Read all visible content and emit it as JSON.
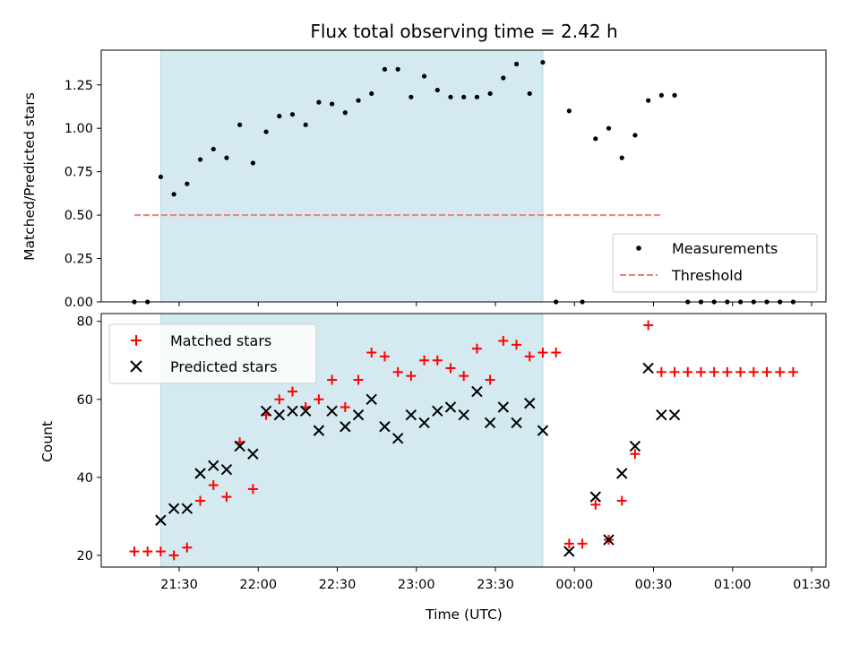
{
  "chart_data": [
    {
      "type": "scatter",
      "title": "Flux total observing time = 2.42 h",
      "ylabel": "Matched/Predicted stars",
      "ylim": [
        0,
        1.45
      ],
      "yticks": [
        "0.00",
        "0.25",
        "0.50",
        "0.75",
        "1.00",
        "1.25"
      ],
      "ytick_values": [
        0,
        0.25,
        0.5,
        0.75,
        1.0,
        1.25
      ],
      "observing_window": {
        "start": "21:23",
        "end": "23:48",
        "color": "#d4eaf0"
      },
      "threshold": {
        "value": 0.5,
        "x_start": "21:13",
        "x_end": "00:33+1",
        "color": "#f08080"
      },
      "legend": {
        "position": "lower right",
        "items": [
          {
            "label": "Measurements",
            "marker": "dot",
            "color": "#000000"
          },
          {
            "label": "Threshold",
            "marker": "dashed-line",
            "color": "#f08080"
          }
        ]
      },
      "series": [
        {
          "name": "Measurements",
          "color": "#000000",
          "points": [
            [
              "21:13",
              0.0
            ],
            [
              "21:18",
              0.0
            ],
            [
              "21:23",
              0.72
            ],
            [
              "21:28",
              0.62
            ],
            [
              "21:33",
              0.68
            ],
            [
              "21:38",
              0.82
            ],
            [
              "21:43",
              0.88
            ],
            [
              "21:48",
              0.83
            ],
            [
              "21:53",
              1.02
            ],
            [
              "21:58",
              0.8
            ],
            [
              "22:03",
              0.98
            ],
            [
              "22:08",
              1.07
            ],
            [
              "22:13",
              1.08
            ],
            [
              "22:18",
              1.02
            ],
            [
              "22:23",
              1.15
            ],
            [
              "22:28",
              1.14
            ],
            [
              "22:33",
              1.09
            ],
            [
              "22:38",
              1.16
            ],
            [
              "22:43",
              1.2
            ],
            [
              "22:48",
              1.34
            ],
            [
              "22:53",
              1.34
            ],
            [
              "22:58",
              1.18
            ],
            [
              "23:03",
              1.3
            ],
            [
              "23:08",
              1.22
            ],
            [
              "23:13",
              1.18
            ],
            [
              "23:18",
              1.18
            ],
            [
              "23:23",
              1.18
            ],
            [
              "23:28",
              1.2
            ],
            [
              "23:33",
              1.29
            ],
            [
              "23:38",
              1.37
            ],
            [
              "23:43",
              1.2
            ],
            [
              "23:48",
              1.38
            ],
            [
              "23:53",
              0.0
            ],
            [
              "23:58",
              1.1
            ],
            [
              "00:03",
              0.0
            ],
            [
              "00:08",
              0.94
            ],
            [
              "00:13",
              1.0
            ],
            [
              "00:18",
              0.83
            ],
            [
              "00:23",
              0.96
            ],
            [
              "00:28",
              1.16
            ],
            [
              "00:33",
              1.19
            ],
            [
              "00:38",
              1.19
            ],
            [
              "00:43",
              0.0
            ],
            [
              "00:48",
              0.0
            ],
            [
              "00:53",
              0.0
            ],
            [
              "00:58",
              0.0
            ],
            [
              "01:03",
              0.0
            ],
            [
              "01:08",
              0.0
            ],
            [
              "01:13",
              0.0
            ],
            [
              "01:18",
              0.0
            ],
            [
              "01:23",
              0.0
            ]
          ]
        }
      ]
    },
    {
      "type": "scatter",
      "xlabel": "Time (UTC)",
      "ylabel": "Count",
      "ylim": [
        17,
        82
      ],
      "yticks": [
        "20",
        "40",
        "60",
        "80"
      ],
      "ytick_values": [
        20,
        40,
        60,
        80
      ],
      "xticks": [
        "21:30",
        "22:00",
        "22:30",
        "23:00",
        "23:30",
        "00:00",
        "00:30",
        "01:00",
        "01:30"
      ],
      "legend": {
        "position": "upper left",
        "items": [
          {
            "label": "Matched stars",
            "marker": "plus",
            "color": "#ff0000"
          },
          {
            "label": "Predicted stars",
            "marker": "x",
            "color": "#000000"
          }
        ]
      },
      "series": [
        {
          "name": "Matched stars",
          "color": "#ff0000",
          "points": [
            [
              "21:13",
              21
            ],
            [
              "21:18",
              21
            ],
            [
              "21:23",
              21
            ],
            [
              "21:28",
              20
            ],
            [
              "21:33",
              22
            ],
            [
              "21:38",
              34
            ],
            [
              "21:43",
              38
            ],
            [
              "21:48",
              35
            ],
            [
              "21:53",
              49
            ],
            [
              "21:58",
              37
            ],
            [
              "22:03",
              56
            ],
            [
              "22:08",
              60
            ],
            [
              "22:13",
              62
            ],
            [
              "22:18",
              58
            ],
            [
              "22:23",
              60
            ],
            [
              "22:28",
              65
            ],
            [
              "22:33",
              58
            ],
            [
              "22:38",
              65
            ],
            [
              "22:43",
              72
            ],
            [
              "22:48",
              71
            ],
            [
              "22:53",
              67
            ],
            [
              "22:58",
              66
            ],
            [
              "23:03",
              70
            ],
            [
              "23:08",
              70
            ],
            [
              "23:13",
              68
            ],
            [
              "23:18",
              66
            ],
            [
              "23:23",
              73
            ],
            [
              "23:28",
              65
            ],
            [
              "23:33",
              75
            ],
            [
              "23:38",
              74
            ],
            [
              "23:43",
              71
            ],
            [
              "23:48",
              72
            ],
            [
              "23:53",
              72
            ],
            [
              "23:58",
              23
            ],
            [
              "00:03",
              23
            ],
            [
              "00:08",
              33
            ],
            [
              "00:13",
              24
            ],
            [
              "00:18",
              34
            ],
            [
              "00:23",
              46
            ],
            [
              "00:28",
              79
            ],
            [
              "00:33",
              67
            ],
            [
              "00:38",
              67
            ],
            [
              "00:43",
              67
            ],
            [
              "00:48",
              67
            ],
            [
              "00:53",
              67
            ],
            [
              "00:58",
              67
            ],
            [
              "01:03",
              67
            ],
            [
              "01:08",
              67
            ],
            [
              "01:13",
              67
            ],
            [
              "01:18",
              67
            ],
            [
              "01:23",
              67
            ]
          ]
        },
        {
          "name": "Predicted stars",
          "color": "#000000",
          "points": [
            [
              "21:23",
              29
            ],
            [
              "21:28",
              32
            ],
            [
              "21:33",
              32
            ],
            [
              "21:38",
              41
            ],
            [
              "21:43",
              43
            ],
            [
              "21:48",
              42
            ],
            [
              "21:53",
              48
            ],
            [
              "21:58",
              46
            ],
            [
              "22:03",
              57
            ],
            [
              "22:08",
              56
            ],
            [
              "22:13",
              57
            ],
            [
              "22:18",
              57
            ],
            [
              "22:23",
              52
            ],
            [
              "22:28",
              57
            ],
            [
              "22:33",
              53
            ],
            [
              "22:38",
              56
            ],
            [
              "22:43",
              60
            ],
            [
              "22:48",
              53
            ],
            [
              "22:53",
              50
            ],
            [
              "22:58",
              56
            ],
            [
              "23:03",
              54
            ],
            [
              "23:08",
              57
            ],
            [
              "23:13",
              58
            ],
            [
              "23:18",
              56
            ],
            [
              "23:23",
              62
            ],
            [
              "23:28",
              54
            ],
            [
              "23:33",
              58
            ],
            [
              "23:38",
              54
            ],
            [
              "23:43",
              59
            ],
            [
              "23:48",
              52
            ],
            [
              "23:58",
              21
            ],
            [
              "00:08",
              35
            ],
            [
              "00:13",
              24
            ],
            [
              "00:18",
              41
            ],
            [
              "00:23",
              48
            ],
            [
              "00:28",
              68
            ],
            [
              "00:33",
              56
            ],
            [
              "00:38",
              56
            ]
          ]
        }
      ]
    }
  ]
}
